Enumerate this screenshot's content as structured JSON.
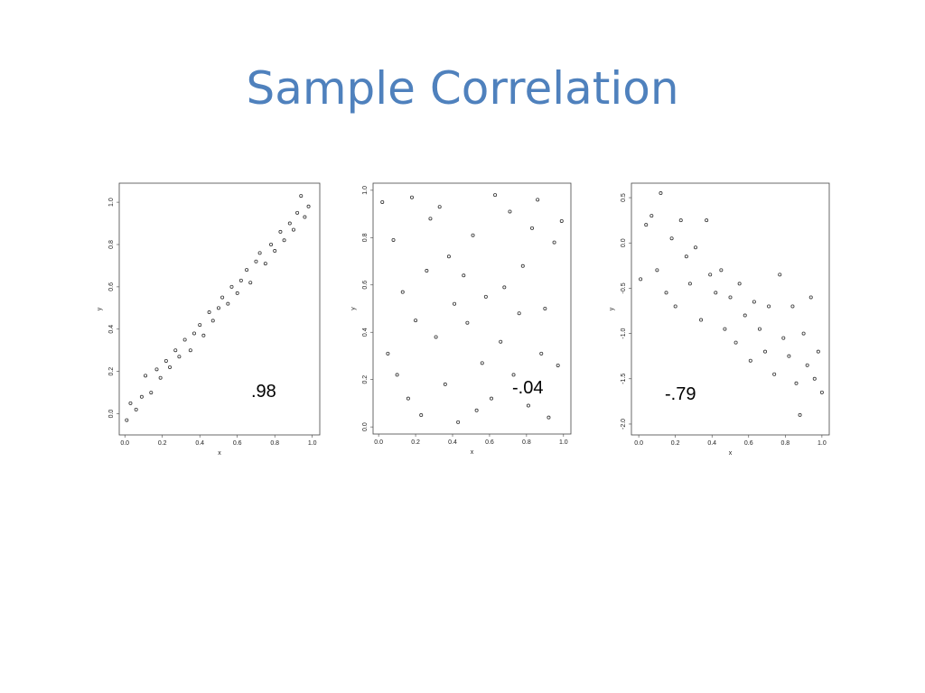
{
  "slide": {
    "title": "Sample Correlation"
  },
  "chart_data": [
    {
      "type": "scatter",
      "xlabel": "x",
      "ylabel": "y",
      "annotation": ".98",
      "color": "#333333",
      "xlim": [
        -0.03,
        1.04
      ],
      "ylim": [
        -0.1,
        1.09
      ],
      "xticks": [
        {
          "value": 0,
          "label": "0.0"
        },
        0.2,
        0.4,
        0.6,
        0.8,
        {
          "value": 1,
          "label": "1.0"
        }
      ],
      "yticks": [
        {
          "value": 0,
          "label": "0.0"
        },
        0.2,
        0.4,
        0.6,
        0.8,
        {
          "value": 1,
          "label": "1.0"
        }
      ],
      "x": [
        0.01,
        0.03,
        0.06,
        0.09,
        0.11,
        0.14,
        0.17,
        0.19,
        0.22,
        0.24,
        0.27,
        0.29,
        0.32,
        0.35,
        0.37,
        0.4,
        0.42,
        0.45,
        0.47,
        0.5,
        0.52,
        0.55,
        0.57,
        0.6,
        0.62,
        0.65,
        0.67,
        0.7,
        0.72,
        0.75,
        0.78,
        0.8,
        0.83,
        0.85,
        0.88,
        0.9,
        0.92,
        0.94,
        0.96,
        0.98
      ],
      "y": [
        -0.03,
        0.05,
        0.02,
        0.08,
        0.18,
        0.1,
        0.21,
        0.17,
        0.25,
        0.22,
        0.3,
        0.27,
        0.35,
        0.3,
        0.38,
        0.42,
        0.37,
        0.48,
        0.44,
        0.5,
        0.55,
        0.52,
        0.6,
        0.57,
        0.63,
        0.68,
        0.62,
        0.72,
        0.76,
        0.71,
        0.8,
        0.77,
        0.86,
        0.82,
        0.9,
        0.87,
        0.95,
        1.03,
        0.93,
        0.98
      ]
    },
    {
      "type": "scatter",
      "xlabel": "x",
      "ylabel": "y",
      "annotation": "-.04",
      "color": "#333333",
      "xlim": [
        -0.03,
        1.04
      ],
      "ylim": [
        -0.03,
        1.03
      ],
      "xticks": [
        {
          "value": 0,
          "label": "0.0"
        },
        0.2,
        0.4,
        0.6,
        0.8,
        {
          "value": 1,
          "label": "1.0"
        }
      ],
      "yticks": [
        {
          "value": 0,
          "label": "0.0"
        },
        0.2,
        0.4,
        0.6,
        0.8,
        {
          "value": 1,
          "label": "1.0"
        }
      ],
      "x": [
        0.02,
        0.05,
        0.08,
        0.1,
        0.13,
        0.16,
        0.18,
        0.2,
        0.23,
        0.26,
        0.28,
        0.31,
        0.33,
        0.36,
        0.38,
        0.41,
        0.43,
        0.46,
        0.48,
        0.51,
        0.53,
        0.56,
        0.58,
        0.61,
        0.63,
        0.66,
        0.68,
        0.71,
        0.73,
        0.76,
        0.78,
        0.81,
        0.83,
        0.86,
        0.88,
        0.9,
        0.92,
        0.95,
        0.97,
        0.99
      ],
      "y": [
        0.95,
        0.31,
        0.79,
        0.22,
        0.57,
        0.12,
        0.97,
        0.45,
        0.05,
        0.66,
        0.88,
        0.38,
        0.93,
        0.18,
        0.72,
        0.52,
        0.02,
        0.64,
        0.44,
        0.81,
        0.07,
        0.27,
        0.55,
        0.12,
        0.98,
        0.36,
        0.59,
        0.91,
        0.22,
        0.48,
        0.68,
        0.09,
        0.84,
        0.96,
        0.31,
        0.5,
        0.04,
        0.78,
        0.26,
        0.87
      ]
    },
    {
      "type": "scatter",
      "xlabel": "x",
      "ylabel": "y",
      "annotation": "-.79",
      "color": "#333333",
      "xlim": [
        -0.04,
        1.04
      ],
      "ylim": [
        -2.12,
        0.66
      ],
      "xticks": [
        {
          "value": 0,
          "label": "0.0"
        },
        0.2,
        0.4,
        0.6,
        0.8,
        {
          "value": 1,
          "label": "1.0"
        }
      ],
      "yticks": [
        {
          "value": -2,
          "label": "-2.0"
        },
        -1.5,
        {
          "value": -1,
          "label": "-1.0"
        },
        -0.5,
        {
          "value": 0,
          "label": "0.0"
        },
        0.5
      ],
      "x": [
        0.01,
        0.04,
        0.07,
        0.1,
        0.12,
        0.15,
        0.18,
        0.2,
        0.23,
        0.26,
        0.28,
        0.31,
        0.34,
        0.37,
        0.39,
        0.42,
        0.45,
        0.47,
        0.5,
        0.53,
        0.55,
        0.58,
        0.61,
        0.63,
        0.66,
        0.69,
        0.71,
        0.74,
        0.77,
        0.79,
        0.82,
        0.84,
        0.86,
        0.88,
        0.9,
        0.92,
        0.94,
        0.96,
        0.98,
        1.0
      ],
      "y": [
        -0.4,
        0.2,
        0.3,
        -0.3,
        0.55,
        -0.55,
        0.05,
        -0.7,
        0.25,
        -0.15,
        -0.45,
        -0.05,
        -0.85,
        0.25,
        -0.35,
        -0.55,
        -0.3,
        -0.95,
        -0.6,
        -1.1,
        -0.45,
        -0.8,
        -1.3,
        -0.65,
        -0.95,
        -1.2,
        -0.7,
        -1.45,
        -0.35,
        -1.05,
        -1.25,
        -0.7,
        -1.55,
        -1.9,
        -1.0,
        -1.35,
        -0.6,
        -1.5,
        -1.2,
        -1.65
      ]
    }
  ]
}
